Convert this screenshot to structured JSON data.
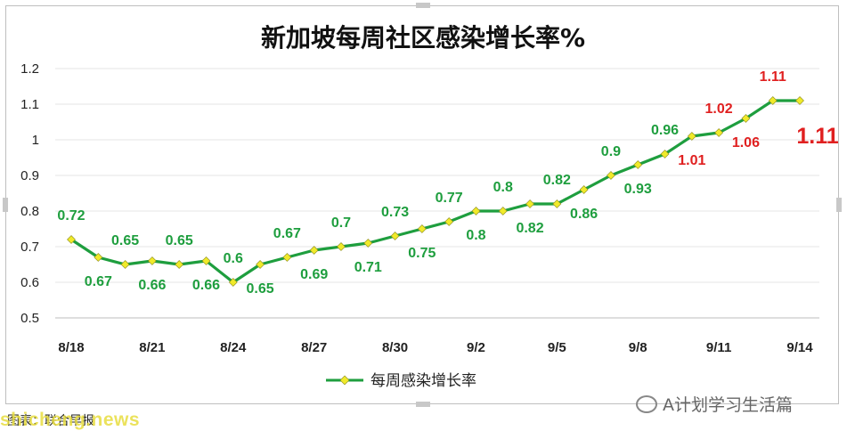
{
  "chart_data": {
    "type": "line",
    "title": "新加坡每周社区感染增长率%",
    "x": [
      "8/18",
      "8/19",
      "8/20",
      "8/21",
      "8/22",
      "8/23",
      "8/24",
      "8/25",
      "8/26",
      "8/27",
      "8/28",
      "8/29",
      "8/30",
      "8/31",
      "9/1",
      "9/2",
      "9/3",
      "9/4",
      "9/5",
      "9/6",
      "9/7",
      "9/8",
      "9/9",
      "9/10",
      "9/11",
      "9/12",
      "9/13",
      "9/14"
    ],
    "xtick_labels": [
      "8/18",
      "8/21",
      "8/24",
      "8/27",
      "8/30",
      "9/2",
      "9/5",
      "9/8",
      "9/11",
      "9/14"
    ],
    "series": [
      {
        "name": "每周感染增长率",
        "values": [
          0.72,
          0.67,
          0.65,
          0.66,
          0.65,
          0.66,
          0.6,
          0.65,
          0.67,
          0.69,
          0.7,
          0.71,
          0.73,
          0.75,
          0.77,
          0.8,
          0.8,
          0.82,
          0.82,
          0.86,
          0.9,
          0.93,
          0.96,
          1.01,
          1.02,
          1.06,
          1.11,
          1.11
        ],
        "data_labels": [
          "0.72",
          "0.67",
          "0.65",
          "0.66",
          "0.65",
          "0.66",
          "0.6",
          "0.65",
          "0.67",
          "0.69",
          "0.7",
          "0.71",
          "0.73",
          "0.75",
          "0.77",
          "0.8",
          "0.8",
          "0.82",
          "0.82",
          "0.86",
          "0.9",
          "0.93",
          "0.96",
          "1.01",
          "1.02",
          "1.06",
          "1.11",
          ""
        ]
      }
    ],
    "ylim": [
      0.5,
      1.2
    ],
    "yticks": [
      "0.5",
      "0.6",
      "0.7",
      "0.8",
      "0.9",
      "1",
      "1.1",
      "1.2"
    ],
    "grid": true,
    "legend": "bottom",
    "highlight_value": "1.11",
    "colors": {
      "line": "#1e9e3e",
      "marker": "#f0ea2a",
      "label_normal": "#1e9e3e",
      "label_high": "#e02020"
    }
  },
  "source": "图表：联合早报",
  "wechat_account": "A计划学习生活篇",
  "watermark": "shicheng.news"
}
